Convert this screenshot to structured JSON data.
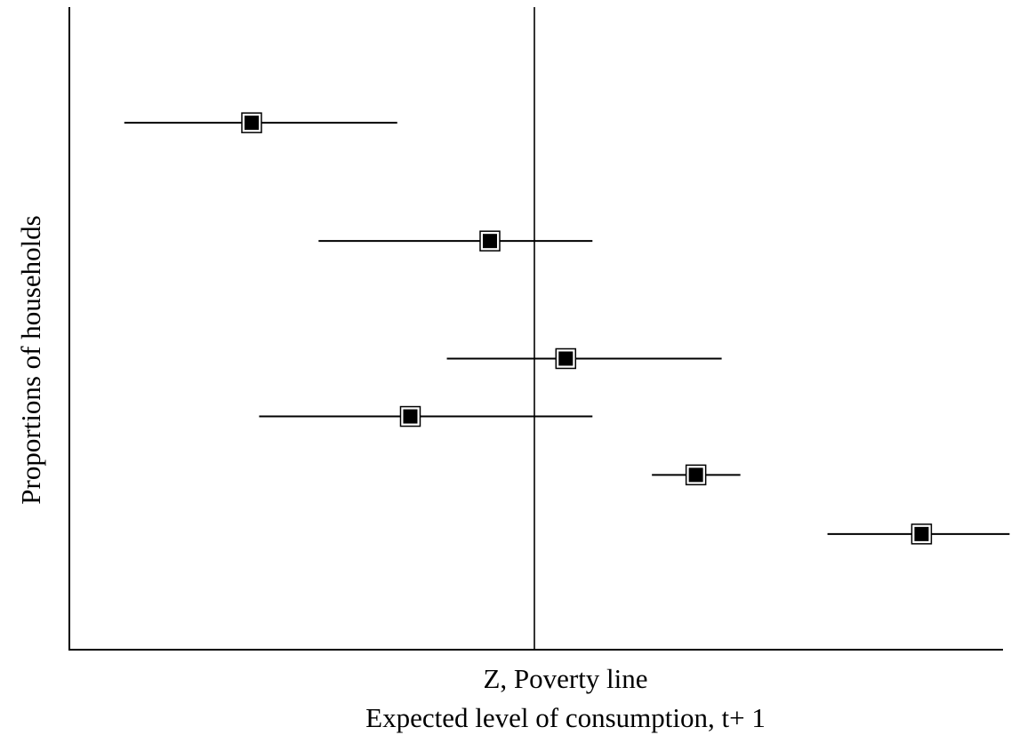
{
  "chart_data": {
    "type": "scatter",
    "title": "",
    "xlabel": "Expected level of consumption, t+ 1",
    "ylabel": "Proportions of households",
    "reference_line": {
      "label": "Z, Poverty line",
      "x": 0
    },
    "xlim": [
      -100,
      100
    ],
    "ylim": [
      0,
      100
    ],
    "grid": false,
    "legend": "none",
    "points": [
      {
        "x": -60.4,
        "y": 82,
        "x_low": -87.6,
        "x_high": -29.3
      },
      {
        "x": -9.5,
        "y": 63.6,
        "x_low": -46.1,
        "x_high": 12.4
      },
      {
        "x": 6.7,
        "y": 45.3,
        "x_low": -18.7,
        "x_high": 40.0
      },
      {
        "x": -26.5,
        "y": 36.3,
        "x_low": -58.8,
        "x_high": 12.4
      },
      {
        "x": 34.5,
        "y": 27.2,
        "x_low": 25.1,
        "x_high": 44.0
      },
      {
        "x": 82.7,
        "y": 18.0,
        "x_low": 62.6,
        "x_high": 101.5
      }
    ]
  },
  "colors": {
    "ink": "#000000",
    "background": "#ffffff"
  }
}
